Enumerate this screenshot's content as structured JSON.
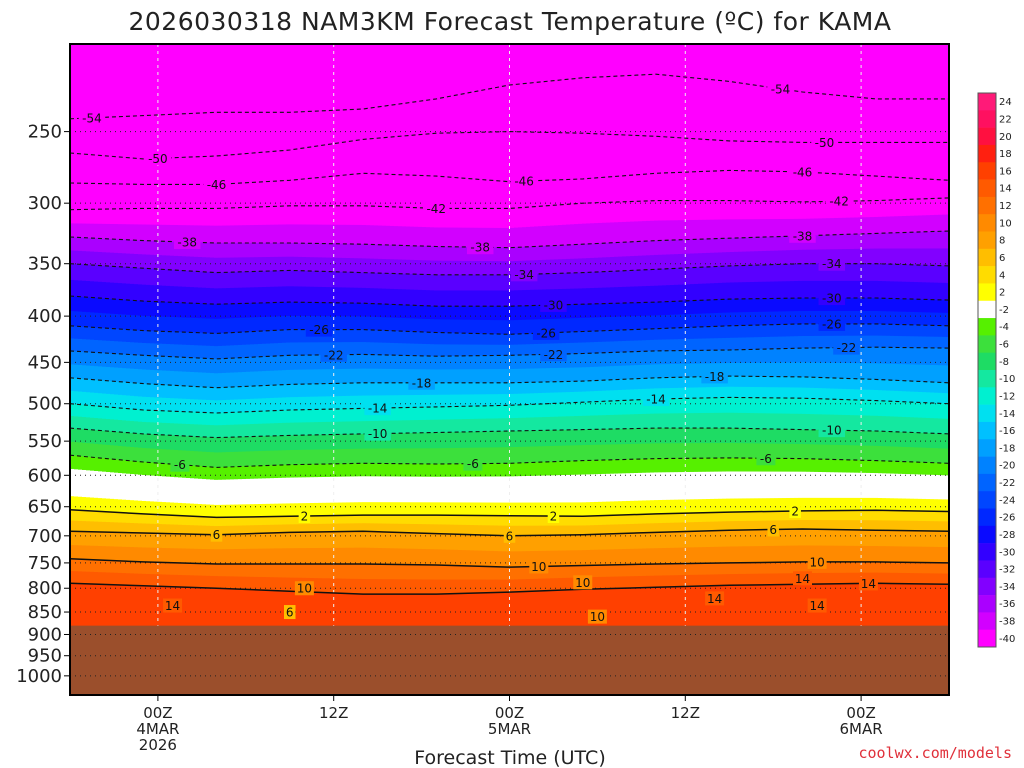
{
  "title": "2026030318 NAM3KM Forecast Temperature (ºC) for KAMA",
  "credit": "coolwx.com/models",
  "chart_data": {
    "type": "heatmap",
    "title": "2026030318 NAM3KM Forecast Temperature (ºC) for KAMA",
    "xlabel": "Forecast Time (UTC)",
    "ylabel": "",
    "x_range_hours": [
      -6,
      54
    ],
    "y_scale": "log pressure",
    "y_range_hPa": [
      200,
      1050
    ],
    "y_ticks": [
      250,
      300,
      350,
      400,
      450,
      500,
      550,
      600,
      650,
      700,
      750,
      800,
      850,
      900,
      950,
      1000
    ],
    "x_ticks": [
      {
        "hour": 0,
        "lines": [
          "00Z",
          "4MAR",
          "2026"
        ]
      },
      {
        "hour": 12,
        "lines": [
          "12Z"
        ]
      },
      {
        "hour": 24,
        "lines": [
          "00Z",
          "5MAR"
        ]
      },
      {
        "hour": 36,
        "lines": [
          "12Z"
        ]
      },
      {
        "hour": 48,
        "lines": [
          "00Z",
          "6MAR"
        ]
      }
    ],
    "grid": true,
    "surface_pressure_hPa": 880,
    "surface_color": "#9b4f2c",
    "colorbar": {
      "placement": "right",
      "levels": [
        24,
        22,
        20,
        18,
        16,
        14,
        12,
        10,
        8,
        6,
        4,
        2,
        -2,
        -4,
        -6,
        -8,
        -10,
        -12,
        -14,
        -16,
        -18,
        -20,
        -22,
        -24,
        -26,
        -28,
        -30,
        -32,
        -34,
        -36,
        -38,
        -40
      ],
      "colors": [
        "#ff1a78",
        "#ff1060",
        "#ff1040",
        "#ff2010",
        "#ff4000",
        "#ff5a00",
        "#ff7000",
        "#ff8a00",
        "#ffa000",
        "#ffbe00",
        "#ffdc00",
        "#ffff00",
        "#ffffff",
        "#56f000",
        "#3ce03c",
        "#1edc64",
        "#14e8a0",
        "#00f0d0",
        "#00e0f0",
        "#00c0ff",
        "#00a0ff",
        "#0082ff",
        "#0064ff",
        "#0046ff",
        "#0028ff",
        "#0a0aff",
        "#3200ff",
        "#5a00ff",
        "#8200ff",
        "#aa00ff",
        "#d200ff",
        "#ff00ff"
      ]
    },
    "isotherms": [
      {
        "temp": -54,
        "p": [
          242,
          240,
          238,
          238,
          236,
          230,
          222,
          218,
          216,
          220,
          226,
          230,
          230
        ],
        "labels": [
          {
            "hour": -4.5,
            "text": "-54"
          },
          {
            "hour": 42.5,
            "text": "-54"
          }
        ]
      },
      {
        "temp": -50,
        "p": [
          264,
          268,
          266,
          262,
          255,
          251,
          250,
          251,
          253,
          256,
          257,
          257,
          257
        ],
        "labels": [
          {
            "hour": 0,
            "text": "-50"
          },
          {
            "hour": 45.5,
            "text": "-50"
          }
        ]
      },
      {
        "temp": -46,
        "p": [
          285,
          286,
          286,
          283,
          278,
          280,
          284,
          282,
          278,
          276,
          277,
          280,
          283
        ],
        "labels": [
          {
            "hour": 4,
            "text": "-46"
          },
          {
            "hour": 25,
            "text": "-46"
          },
          {
            "hour": 44,
            "text": "-46"
          }
        ]
      },
      {
        "temp": -42,
        "p": [
          305,
          304,
          304,
          302,
          302,
          304,
          304,
          300,
          298,
          298,
          299,
          298,
          296
        ],
        "labels": [
          {
            "hour": 19,
            "text": "-42"
          },
          {
            "hour": 46.5,
            "text": "-42"
          }
        ]
      },
      {
        "temp": -38,
        "p": [
          327,
          330,
          332,
          332,
          333,
          335,
          336,
          333,
          330,
          328,
          326,
          324,
          322
        ],
        "labels": [
          {
            "hour": 2,
            "text": "-38"
          },
          {
            "hour": 22,
            "text": "-38"
          },
          {
            "hour": 44,
            "text": "-38"
          }
        ]
      },
      {
        "temp": -34,
        "p": [
          350,
          354,
          358,
          356,
          358,
          360,
          360,
          358,
          355,
          352,
          350,
          350,
          352
        ],
        "labels": [
          {
            "hour": 25,
            "text": "-34"
          },
          {
            "hour": 46,
            "text": "-34"
          }
        ]
      },
      {
        "temp": -30,
        "p": [
          380,
          385,
          388,
          386,
          387,
          390,
          390,
          388,
          386,
          383,
          382,
          382,
          384
        ],
        "labels": [
          {
            "hour": 27,
            "text": "-30"
          },
          {
            "hour": 46,
            "text": "-30"
          }
        ]
      },
      {
        "temp": -26,
        "p": [
          410,
          415,
          418,
          414,
          414,
          417,
          419,
          416,
          413,
          410,
          408,
          408,
          410
        ],
        "labels": [
          {
            "hour": 11,
            "text": "-26"
          },
          {
            "hour": 26.5,
            "text": "-26"
          },
          {
            "hour": 46,
            "text": "-26"
          }
        ]
      },
      {
        "temp": -22,
        "p": [
          437,
          442,
          446,
          442,
          441,
          443,
          442,
          440,
          437,
          436,
          434,
          433,
          434
        ],
        "labels": [
          {
            "hour": 12,
            "text": "-22"
          },
          {
            "hour": 27,
            "text": "-22"
          },
          {
            "hour": 47,
            "text": "-22"
          }
        ]
      },
      {
        "temp": -18,
        "p": [
          468,
          475,
          480,
          476,
          474,
          474,
          474,
          472,
          468,
          466,
          467,
          470,
          474
        ],
        "labels": [
          {
            "hour": 18,
            "text": "-18"
          },
          {
            "hour": 38,
            "text": "-18"
          }
        ]
      },
      {
        "temp": -14,
        "p": [
          500,
          508,
          512,
          508,
          506,
          504,
          502,
          498,
          494,
          492,
          493,
          496,
          500
        ],
        "labels": [
          {
            "hour": 15,
            "text": "-14"
          },
          {
            "hour": 34,
            "text": "-14"
          }
        ]
      },
      {
        "temp": -10,
        "p": [
          532,
          540,
          545,
          542,
          540,
          538,
          536,
          534,
          532,
          532,
          534,
          536,
          540
        ],
        "labels": [
          {
            "hour": 15,
            "text": "-10"
          },
          {
            "hour": 46,
            "text": "-10"
          }
        ]
      },
      {
        "temp": -6,
        "p": [
          570,
          580,
          588,
          584,
          582,
          583,
          582,
          578,
          575,
          574,
          575,
          578,
          582
        ],
        "labels": [
          {
            "hour": 1.5,
            "text": "-6"
          },
          {
            "hour": 21.5,
            "text": "-6"
          },
          {
            "hour": 41.5,
            "text": "-6"
          }
        ]
      },
      {
        "temp": 2,
        "p": [
          655,
          662,
          668,
          666,
          664,
          664,
          665,
          666,
          662,
          659,
          657,
          656,
          658
        ],
        "labels": [
          {
            "hour": 10,
            "text": "2"
          },
          {
            "hour": 27,
            "text": "2"
          },
          {
            "hour": 43.5,
            "text": "2"
          }
        ]
      },
      {
        "temp": 6,
        "p": [
          692,
          695,
          698,
          694,
          692,
          696,
          700,
          698,
          694,
          690,
          688,
          690,
          692
        ],
        "labels": [
          {
            "hour": 4,
            "text": "6"
          },
          {
            "hour": 24,
            "text": "6"
          },
          {
            "hour": 42,
            "text": "6"
          }
        ]
      },
      {
        "temp": 10,
        "p": [
          742,
          748,
          752,
          752,
          752,
          754,
          758,
          755,
          752,
          750,
          748,
          748,
          750
        ],
        "labels": [
          {
            "hour": 26,
            "text": "10"
          },
          {
            "hour": 45,
            "text": "10"
          }
        ]
      },
      {
        "temp": 14,
        "p": [
          790,
          795,
          800,
          806,
          812,
          812,
          808,
          802,
          798,
          794,
          792,
          790,
          792
        ],
        "labels": [
          {
            "hour": 48.5,
            "text": "14"
          }
        ]
      }
    ],
    "extra_labels": [
      {
        "hour": 10,
        "p": 800,
        "text": "10"
      },
      {
        "hour": 1,
        "p": 836,
        "text": "14"
      },
      {
        "hour": 9,
        "p": 850,
        "text": "6"
      },
      {
        "hour": 29,
        "p": 788,
        "text": "10"
      },
      {
        "hour": 38,
        "p": 821,
        "text": "14"
      },
      {
        "hour": 30,
        "p": 860,
        "text": "10"
      },
      {
        "hour": 45,
        "p": 836,
        "text": "14"
      },
      {
        "hour": 44,
        "p": 780,
        "text": "14"
      }
    ]
  }
}
